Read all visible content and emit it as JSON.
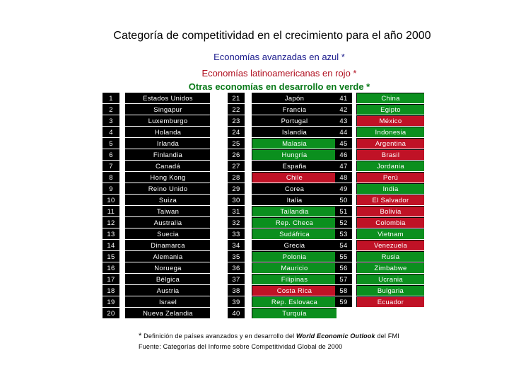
{
  "title": "Categoría de competitividad en el crecimiento para el año 2000",
  "legend": {
    "advanced": "Economías avanzadas en azul *",
    "latin": "Economías latinoamericanas en rojo *",
    "other": "Otras economías en desarrollo en verde *"
  },
  "colors": {
    "advanced": "#000000",
    "latin": "#c01226",
    "other": "#0b8f1e"
  },
  "columns": [
    [
      {
        "rank": "1",
        "name": "Estados Unidos",
        "group": "advanced"
      },
      {
        "rank": "2",
        "name": "Singapur",
        "group": "advanced"
      },
      {
        "rank": "3",
        "name": "Luxemburgo",
        "group": "advanced"
      },
      {
        "rank": "4",
        "name": "Holanda",
        "group": "advanced"
      },
      {
        "rank": "5",
        "name": "Irlanda",
        "group": "advanced"
      },
      {
        "rank": "6",
        "name": "Finlandia",
        "group": "advanced"
      },
      {
        "rank": "7",
        "name": "Canadá",
        "group": "advanced"
      },
      {
        "rank": "8",
        "name": "Hong Kong",
        "group": "advanced"
      },
      {
        "rank": "9",
        "name": "Reino Unido",
        "group": "advanced"
      },
      {
        "rank": "10",
        "name": "Suiza",
        "group": "advanced"
      },
      {
        "rank": "11",
        "name": "Taiwan",
        "group": "advanced"
      },
      {
        "rank": "12",
        "name": "Australia",
        "group": "advanced"
      },
      {
        "rank": "13",
        "name": "Suecia",
        "group": "advanced"
      },
      {
        "rank": "14",
        "name": "Dinamarca",
        "group": "advanced"
      },
      {
        "rank": "15",
        "name": "Alemania",
        "group": "advanced"
      },
      {
        "rank": "16",
        "name": "Noruega",
        "group": "advanced"
      },
      {
        "rank": "17",
        "name": "Bélgica",
        "group": "advanced"
      },
      {
        "rank": "18",
        "name": "Austria",
        "group": "advanced"
      },
      {
        "rank": "19",
        "name": "Israel",
        "group": "advanced"
      },
      {
        "rank": "20",
        "name": "Nueva Zelandia",
        "group": "advanced"
      }
    ],
    [
      {
        "rank": "21",
        "name": "Japón",
        "group": "advanced"
      },
      {
        "rank": "22",
        "name": "Francia",
        "group": "advanced"
      },
      {
        "rank": "23",
        "name": "Portugal",
        "group": "advanced"
      },
      {
        "rank": "24",
        "name": "Islandia",
        "group": "advanced"
      },
      {
        "rank": "25",
        "name": "Malasia",
        "group": "other"
      },
      {
        "rank": "26",
        "name": "Hungría",
        "group": "other"
      },
      {
        "rank": "27",
        "name": "España",
        "group": "advanced"
      },
      {
        "rank": "28",
        "name": "Chile",
        "group": "latin"
      },
      {
        "rank": "29",
        "name": "Corea",
        "group": "advanced"
      },
      {
        "rank": "30",
        "name": "Italia",
        "group": "advanced"
      },
      {
        "rank": "31",
        "name": "Tailandia",
        "group": "other"
      },
      {
        "rank": "32",
        "name": "Rep. Checa",
        "group": "other"
      },
      {
        "rank": "33",
        "name": "Sudáfrica",
        "group": "other"
      },
      {
        "rank": "34",
        "name": "Grecia",
        "group": "advanced"
      },
      {
        "rank": "35",
        "name": "Polonia",
        "group": "other"
      },
      {
        "rank": "36",
        "name": "Mauricio",
        "group": "other"
      },
      {
        "rank": "37",
        "name": "Filipinas",
        "group": "other"
      },
      {
        "rank": "38",
        "name": "Costa Rica",
        "group": "latin"
      },
      {
        "rank": "39",
        "name": "Rep. Eslovaca",
        "group": "other"
      },
      {
        "rank": "40",
        "name": "Turquía",
        "group": "other"
      }
    ],
    [
      {
        "rank": "41",
        "name": "China",
        "group": "other"
      },
      {
        "rank": "42",
        "name": "Egipto",
        "group": "other"
      },
      {
        "rank": "43",
        "name": "México",
        "group": "latin"
      },
      {
        "rank": "44",
        "name": "Indonesia",
        "group": "other"
      },
      {
        "rank": "45",
        "name": "Argentina",
        "group": "latin"
      },
      {
        "rank": "46",
        "name": "Brasil",
        "group": "latin"
      },
      {
        "rank": "47",
        "name": "Jordania",
        "group": "other"
      },
      {
        "rank": "48",
        "name": "Perú",
        "group": "latin"
      },
      {
        "rank": "49",
        "name": "India",
        "group": "other"
      },
      {
        "rank": "50",
        "name": "El Salvador",
        "group": "latin"
      },
      {
        "rank": "51",
        "name": "Bolivia",
        "group": "latin"
      },
      {
        "rank": "52",
        "name": "Colombia",
        "group": "latin"
      },
      {
        "rank": "53",
        "name": "Vietnam",
        "group": "other"
      },
      {
        "rank": "54",
        "name": "Venezuela",
        "group": "latin"
      },
      {
        "rank": "55",
        "name": "Rusia",
        "group": "other"
      },
      {
        "rank": "56",
        "name": "Zimbabwe",
        "group": "other"
      },
      {
        "rank": "57",
        "name": "Ucrania",
        "group": "other"
      },
      {
        "rank": "58",
        "name": "Bulgaria",
        "group": "other"
      },
      {
        "rank": "59",
        "name": "Ecuador",
        "group": "latin"
      }
    ]
  ],
  "footnote": {
    "star": "*",
    "part1": " Definición de países avanzados y en desarrollo del ",
    "emph": "World Economic Outlook",
    "part2": " del FMI",
    "source": "Fuente: Categorías del Informe sobre Competitividad Global de 2000"
  }
}
